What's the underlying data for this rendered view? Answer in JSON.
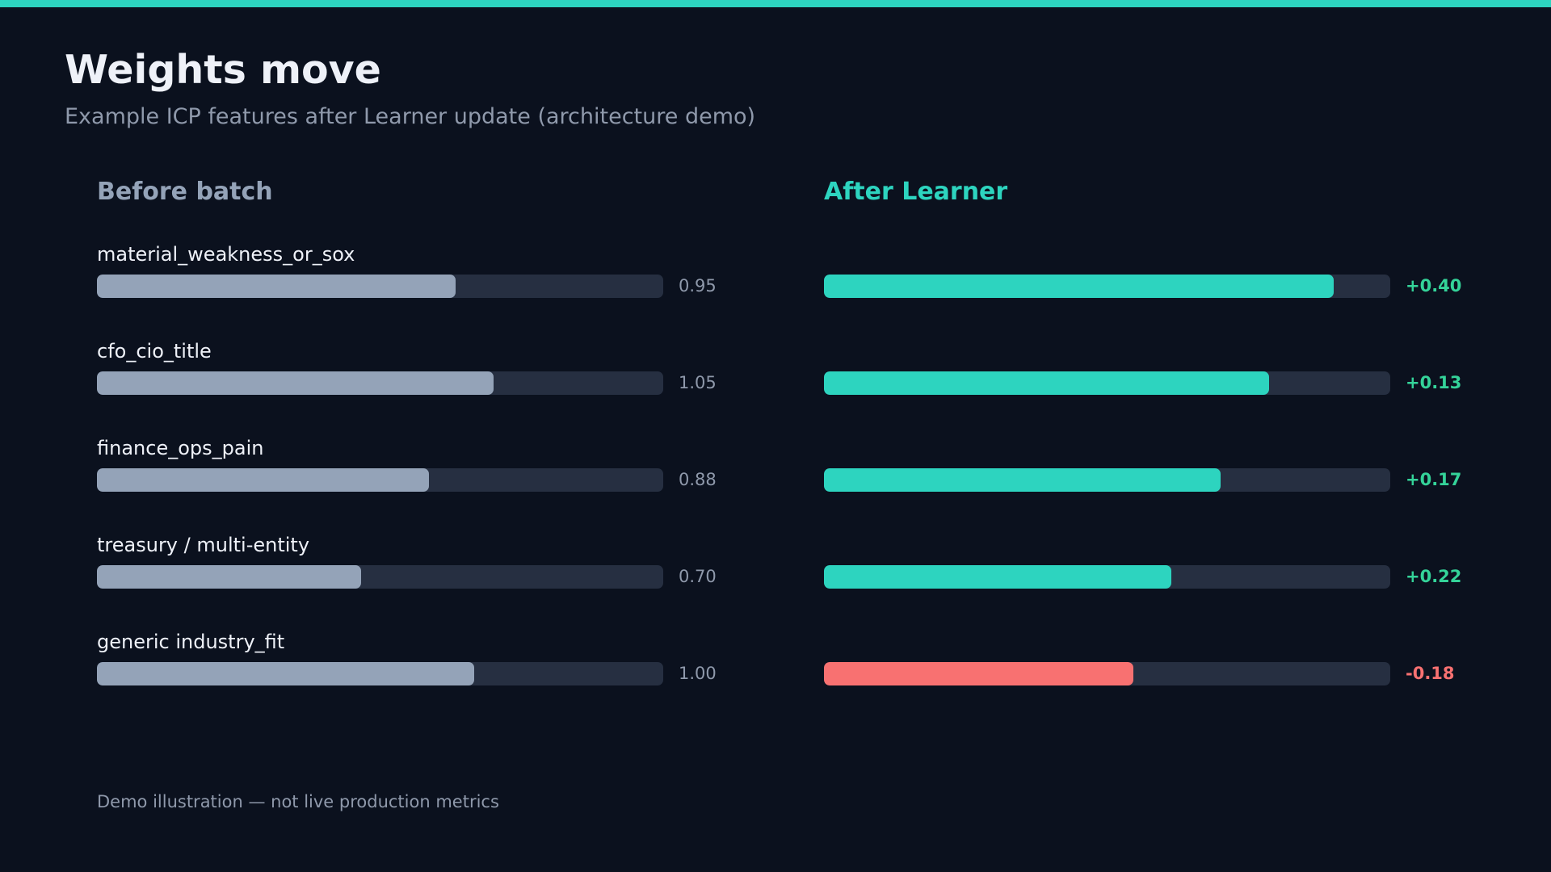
{
  "header": {
    "title": "Weights move",
    "subtitle": "Example ICP features after Learner update (architecture demo)"
  },
  "columns": {
    "before_heading": "Before batch",
    "after_heading": "After Learner"
  },
  "footnote": "Demo illustration — not live production metrics",
  "colors": {
    "accent": "#2dd4bf",
    "before_bar": "#94a3b8",
    "negative": "#f87171",
    "positive_text": "#34d399",
    "track": "#262f41"
  },
  "chart_data": {
    "type": "bar",
    "title": "Weights move",
    "subtitle": "Example ICP features after Learner update (architecture demo)",
    "categories": [
      "material_weakness_or_sox",
      "cfo_cio_title",
      "finance_ops_pain",
      "treasury / multi-entity",
      "generic industry_fit"
    ],
    "scale_max": 1.5,
    "series": [
      {
        "name": "Before batch",
        "values": [
          0.95,
          1.05,
          0.88,
          0.7,
          1.0
        ],
        "labels": [
          "0.95",
          "1.05",
          "0.88",
          "0.70",
          "1.00"
        ]
      },
      {
        "name": "After Learner",
        "values": [
          1.35,
          1.18,
          1.05,
          0.92,
          0.82
        ],
        "deltas": [
          0.4,
          0.13,
          0.17,
          0.22,
          -0.18
        ],
        "labels": [
          "+0.40",
          "+0.13",
          "+0.17",
          "+0.22",
          "-0.18"
        ]
      }
    ]
  }
}
